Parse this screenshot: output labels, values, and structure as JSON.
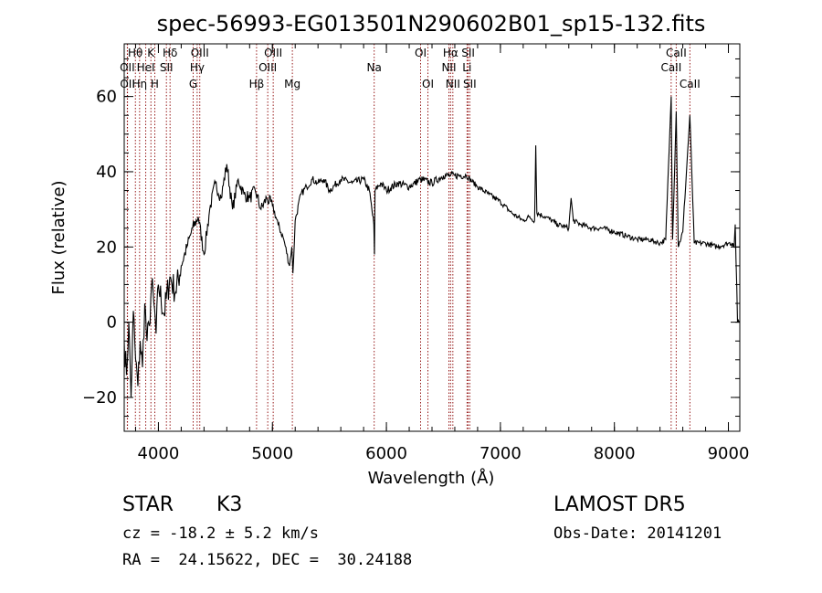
{
  "title": "spec-56993-EG013501N290602B01_sp15-132.fits",
  "footer": {
    "object_class": "STAR",
    "subclass": "K3",
    "cz": "cz = -18.2 ± 5.2 km/s",
    "coords": "RA =  24.15622, DEC =  30.24188",
    "survey": "LAMOST DR5",
    "obs_date": "Obs-Date: 20141201"
  },
  "chart_data": {
    "type": "line",
    "title": "spec-56993-EG013501N290602B01_sp15-132.fits",
    "xlabel": "Wavelength (Å)",
    "ylabel": "Flux (relative)",
    "xlim": [
      3700,
      9100
    ],
    "ylim": [
      -29,
      74
    ],
    "x_ticks": [
      4000,
      5000,
      6000,
      7000,
      8000,
      9000
    ],
    "y_ticks": [
      -20,
      0,
      20,
      40,
      60
    ],
    "grid": false,
    "line_color": "#000000",
    "marker_color": "#8b0000",
    "series": [
      {
        "x": [
          3700,
          3720,
          3740,
          3760,
          3780,
          3800,
          3820,
          3840,
          3860,
          3880,
          3900,
          3920,
          3940,
          3960,
          3980,
          4000,
          4050,
          4100,
          4150,
          4200,
          4250,
          4300,
          4350,
          4400,
          4450,
          4500,
          4550,
          4600,
          4650,
          4700,
          4750,
          4800,
          4850,
          4900,
          4950,
          5000,
          5050,
          5100,
          5150,
          5170,
          5180,
          5200,
          5250,
          5300,
          5350,
          5400,
          5450,
          5500,
          5600,
          5700,
          5800,
          5850,
          5890,
          5895,
          5900,
          5950,
          6000,
          6100,
          6200,
          6300,
          6400,
          6500,
          6560,
          6600,
          6700,
          6800,
          6900,
          7000,
          7100,
          7200,
          7250,
          7300,
          7310,
          7320,
          7400,
          7500,
          7600,
          7620,
          7640,
          7700,
          7800,
          7900,
          8000,
          8100,
          8200,
          8300,
          8400,
          8450,
          8498,
          8510,
          8542,
          8560,
          8600,
          8662,
          8700,
          8800,
          8900,
          9000,
          9040,
          9050,
          9060,
          9080,
          9100
        ],
        "y": [
          -5,
          -14,
          0,
          -20,
          3,
          -10,
          -17,
          -5,
          -12,
          5,
          -5,
          -1,
          10,
          5,
          -3,
          10,
          2,
          12,
          8,
          15,
          20,
          25,
          28,
          18,
          30,
          37,
          33,
          42,
          30,
          38,
          34,
          33,
          35,
          30,
          33,
          31,
          26,
          22,
          15,
          20,
          13,
          27,
          34,
          36,
          38,
          37,
          38,
          35,
          38,
          37,
          38,
          35,
          26,
          18,
          35,
          37,
          35,
          37,
          36,
          38,
          37,
          39,
          39,
          39,
          39,
          36,
          34,
          32,
          29,
          27,
          28,
          27,
          47,
          29,
          28,
          26,
          25,
          33,
          27,
          26,
          25,
          25,
          24,
          23,
          22,
          22,
          21,
          22,
          60,
          22,
          56,
          20,
          24,
          55,
          21,
          21,
          20,
          21,
          21,
          20,
          26,
          0,
          0
        ]
      }
    ],
    "line_markers": [
      {
        "name": "Hθ",
        "wavelength": 3798,
        "row": 1
      },
      {
        "name": "OII",
        "wavelength": 3727,
        "row": 2
      },
      {
        "name": "OII",
        "wavelength": 3729,
        "row": 3
      },
      {
        "name": "HeI",
        "wavelength": 3889,
        "row": 2
      },
      {
        "name": "Hη",
        "wavelength": 3835,
        "row": 3
      },
      {
        "name": "K",
        "wavelength": 3934,
        "row": 1
      },
      {
        "name": "H",
        "wavelength": 3968,
        "row": 3
      },
      {
        "name": "Hδ",
        "wavelength": 4102,
        "row": 1
      },
      {
        "name": "SII",
        "wavelength": 4070,
        "row": 2
      },
      {
        "name": "OIII",
        "wavelength": 4363,
        "row": 1
      },
      {
        "name": "Hγ",
        "wavelength": 4340,
        "row": 2
      },
      {
        "name": "G",
        "wavelength": 4305,
        "row": 3
      },
      {
        "name": "Hβ",
        "wavelength": 4861,
        "row": 3
      },
      {
        "name": "OIII",
        "wavelength": 5007,
        "row": 1
      },
      {
        "name": "OIII",
        "wavelength": 4959,
        "row": 2
      },
      {
        "name": "Mg",
        "wavelength": 5175,
        "row": 3
      },
      {
        "name": "Na",
        "wavelength": 5893,
        "row": 2
      },
      {
        "name": "OI",
        "wavelength": 6300,
        "row": 1
      },
      {
        "name": "OI",
        "wavelength": 6364,
        "row": 3
      },
      {
        "name": "Hα",
        "wavelength": 6563,
        "row": 1
      },
      {
        "name": "NII",
        "wavelength": 6548,
        "row": 2
      },
      {
        "name": "NII",
        "wavelength": 6583,
        "row": 3
      },
      {
        "name": "SII",
        "wavelength": 6717,
        "row": 1
      },
      {
        "name": "Li",
        "wavelength": 6707,
        "row": 2
      },
      {
        "name": "SII",
        "wavelength": 6731,
        "row": 3
      },
      {
        "name": "CaII",
        "wavelength": 8542,
        "row": 1
      },
      {
        "name": "CaII",
        "wavelength": 8498,
        "row": 2
      },
      {
        "name": "CaII",
        "wavelength": 8662,
        "row": 3
      }
    ]
  }
}
